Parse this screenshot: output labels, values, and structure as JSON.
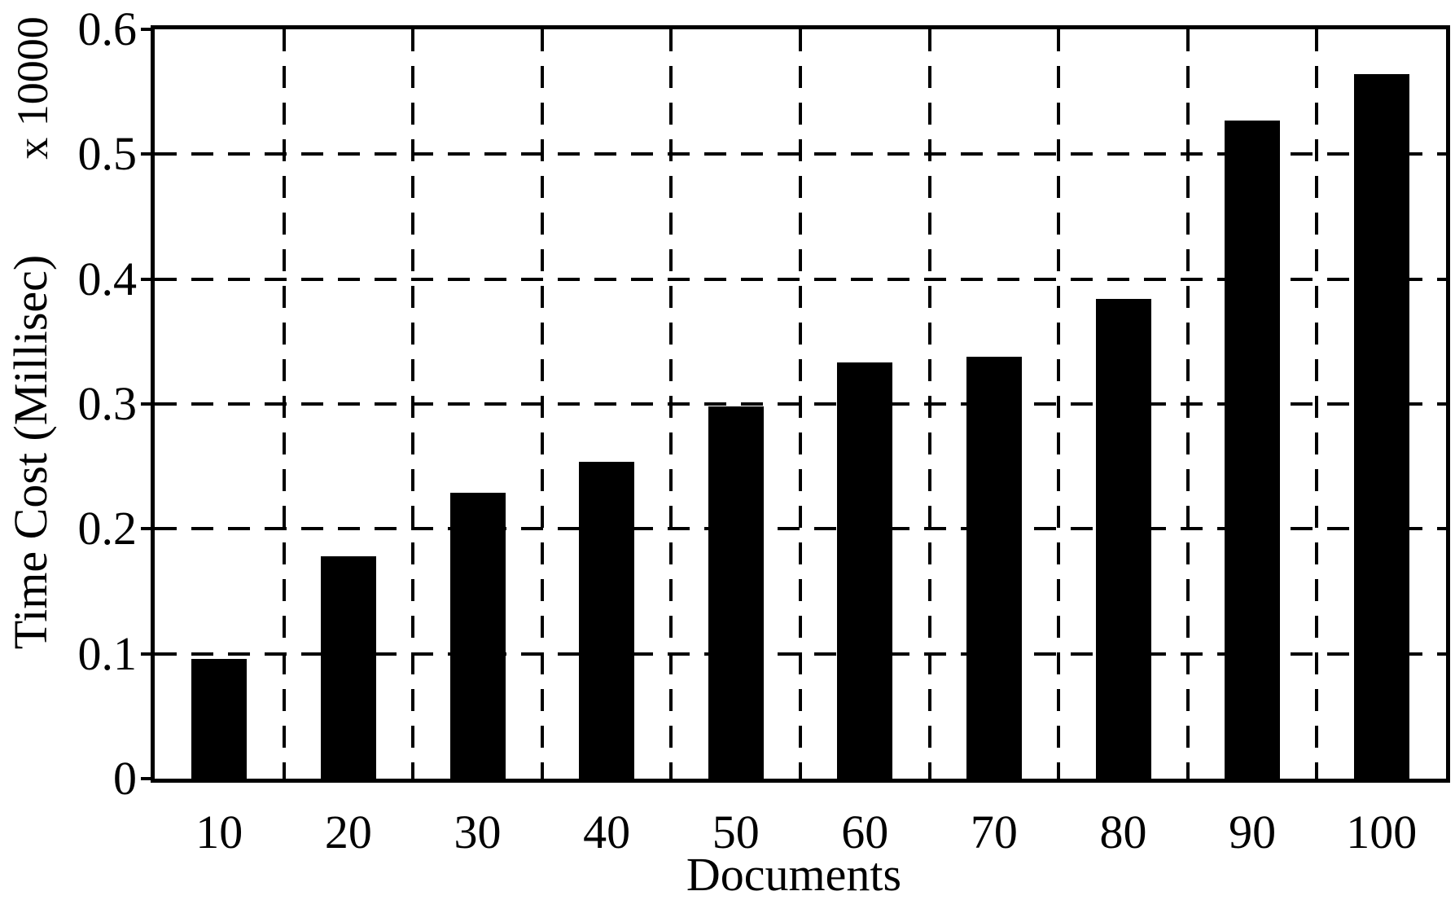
{
  "chart_data": {
    "type": "bar",
    "title": "",
    "categories": [
      "10",
      "20",
      "30",
      "40",
      "50",
      "60",
      "70",
      "80",
      "90",
      "100"
    ],
    "values": [
      0.096,
      0.178,
      0.229,
      0.254,
      0.298,
      0.333,
      0.338,
      0.384,
      0.527,
      0.564
    ],
    "xlabel": "Documents",
    "ylabel": "Time Cost (Millisec)",
    "y_scale_label": "x 10000",
    "ylim": [
      0,
      0.6
    ],
    "yticks": [
      0,
      0.1,
      0.2,
      0.3,
      0.4,
      0.5,
      0.6
    ],
    "ytick_labels": [
      "0",
      "0.1",
      "0.2",
      "0.3",
      "0.4",
      "0.5",
      "0.6"
    ],
    "legend_position": "none",
    "grid_style": "dashed",
    "bar_color": "#000000",
    "axis_color": "#000000",
    "background_color": "#ffffff"
  }
}
